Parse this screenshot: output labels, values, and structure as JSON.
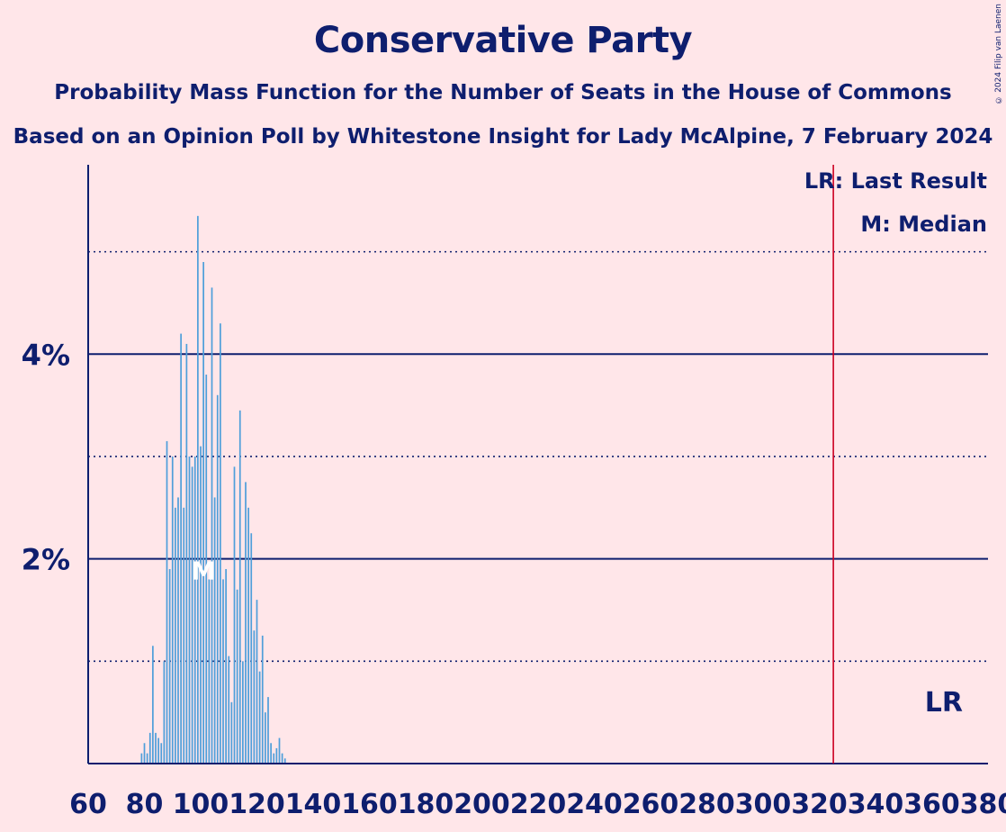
{
  "title": "Conservative Party",
  "subtitle": "Probability Mass Function for the Number of Seats in the House of Commons",
  "subtitle2": "Based on an Opinion Poll by Whitestone Insight for Lady McAlpine, 7 February 2024",
  "copyright": "© 2024 Filip van Laenen",
  "legend": {
    "last_result": "LR: Last Result",
    "median": "M: Median"
  },
  "colors": {
    "background": "#ffe6e9",
    "bars": "#4f9fda",
    "axis": "#0e1e6e",
    "last_result_line": "#cc0022"
  },
  "chart_data": {
    "type": "bar",
    "x": [
      79,
      80,
      81,
      82,
      83,
      84,
      85,
      86,
      87,
      88,
      89,
      90,
      91,
      92,
      93,
      94,
      95,
      96,
      97,
      98,
      99,
      100,
      101,
      102,
      103,
      104,
      105,
      106,
      107,
      108,
      109,
      110,
      111,
      112,
      113,
      114,
      115,
      116,
      117,
      118,
      119,
      120,
      121,
      122,
      123,
      124,
      125,
      126,
      127,
      128,
      129,
      130
    ],
    "values": [
      0.1,
      0.2,
      0.1,
      0.3,
      1.15,
      0.3,
      0.25,
      0.2,
      1.0,
      3.15,
      1.9,
      3.0,
      2.5,
      2.6,
      4.2,
      2.5,
      4.1,
      3.0,
      2.9,
      3.0,
      5.35,
      3.1,
      4.9,
      3.8,
      1.8,
      4.65,
      2.6,
      3.6,
      4.3,
      1.8,
      1.9,
      1.05,
      0.6,
      2.9,
      1.7,
      3.45,
      1.0,
      2.75,
      2.5,
      2.25,
      1.3,
      1.6,
      0.9,
      1.25,
      0.5,
      0.65,
      0.2,
      0.1,
      0.15,
      0.25,
      0.1,
      0.05
    ],
    "xlim": [
      60,
      380
    ],
    "ylim": [
      0,
      5.85
    ],
    "xticks": [
      60,
      80,
      100,
      120,
      140,
      160,
      180,
      200,
      220,
      240,
      260,
      280,
      300,
      320,
      340,
      360,
      380
    ],
    "yticks_labeled": [
      2,
      4
    ],
    "ylines_solid": [
      2,
      4
    ],
    "ylines_dotted": [
      1,
      3,
      5
    ],
    "ytick_suffix": "%",
    "median": 101,
    "median_marker": "M",
    "last_result": 325,
    "last_result_marker": "LR"
  }
}
